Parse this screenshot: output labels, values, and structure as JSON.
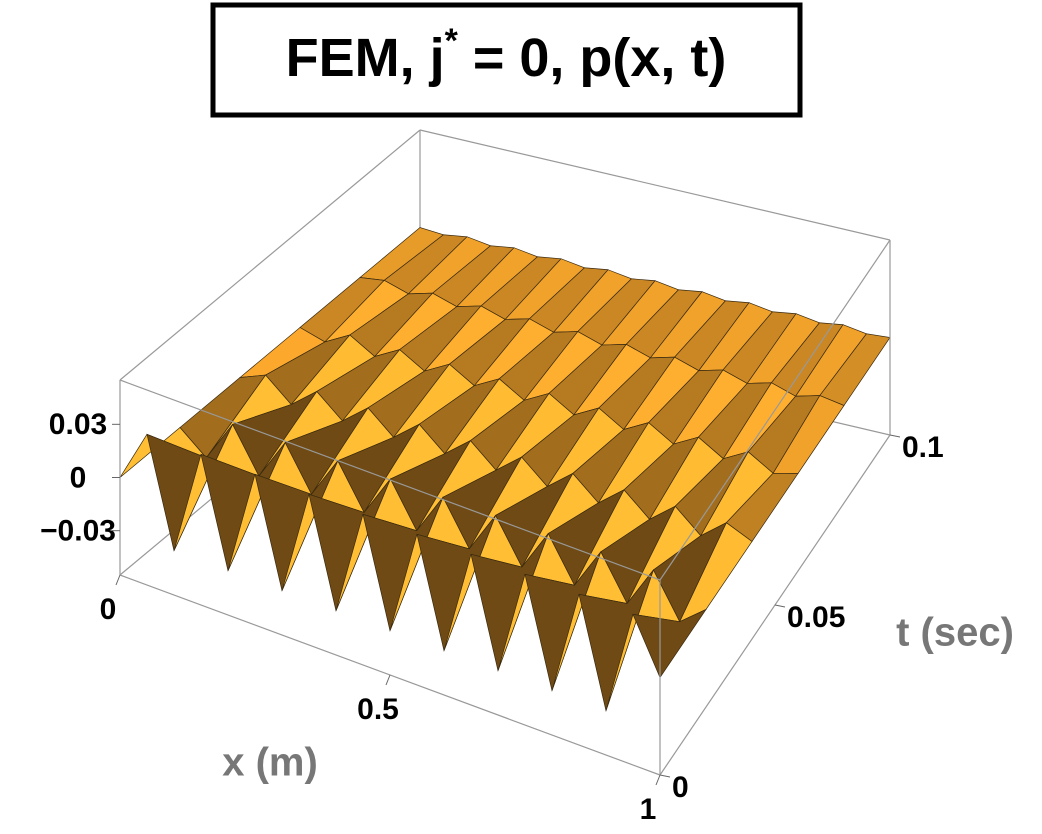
{
  "chart_data": {
    "type": "surface3d",
    "title": "FEM, j* = 0, p(x, t)",
    "x_label": "x (m)",
    "t_label": "t (sec)",
    "color": "#f6a52c",
    "x": [
      0,
      0.05,
      0.1,
      0.15,
      0.2,
      0.25,
      0.3,
      0.35,
      0.4,
      0.45,
      0.5,
      0.55,
      0.6,
      0.65,
      0.7,
      0.75,
      0.8,
      0.85,
      0.9,
      0.95,
      1
    ],
    "t": [
      0,
      0.02,
      0.04,
      0.06,
      0.08,
      0.1
    ],
    "z": [
      [
        0,
        0.03,
        -0.03,
        0.03,
        -0.03,
        0.03,
        -0.03,
        0.03,
        -0.03,
        0.03,
        -0.03,
        0.03,
        -0.03,
        0.03,
        -0.03,
        0.03,
        -0.03,
        0.03,
        -0.03,
        0.03,
        0
      ],
      [
        0,
        -0.012,
        0.012,
        -0.012,
        0.012,
        -0.012,
        0.012,
        -0.012,
        0.012,
        -0.012,
        0.012,
        -0.012,
        0.012,
        -0.012,
        0.012,
        -0.012,
        0.012,
        -0.012,
        0.012,
        -0.012,
        0
      ],
      [
        0,
        0.006,
        -0.006,
        0.006,
        -0.006,
        0.006,
        -0.006,
        0.006,
        -0.006,
        0.006,
        -0.006,
        0.006,
        -0.006,
        0.006,
        -0.006,
        0.006,
        -0.006,
        0.006,
        -0.006,
        0.006,
        0
      ],
      [
        0,
        -0.004,
        0.004,
        -0.004,
        0.004,
        -0.004,
        0.004,
        -0.004,
        0.004,
        -0.004,
        0.004,
        -0.004,
        0.004,
        -0.004,
        0.004,
        -0.004,
        0.004,
        -0.004,
        0.004,
        -0.004,
        0
      ],
      [
        0,
        0.002,
        -0.002,
        0.002,
        -0.002,
        0.002,
        -0.002,
        0.002,
        -0.002,
        0.002,
        -0.002,
        0.002,
        -0.002,
        0.002,
        -0.002,
        0.002,
        -0.002,
        0.002,
        -0.002,
        0.002,
        0
      ],
      [
        0,
        -0.001,
        0.001,
        -0.001,
        0.001,
        -0.001,
        0.001,
        -0.001,
        0.001,
        -0.001,
        0.001,
        -0.001,
        0.001,
        -0.001,
        0.001,
        -0.001,
        0.001,
        -0.001,
        0.001,
        -0.001,
        0
      ]
    ],
    "xlim": [
      0,
      1
    ],
    "xticks": [
      0,
      0.5,
      1
    ],
    "tlim": [
      0,
      0.1
    ],
    "tticks": [
      0,
      0.05,
      0.1
    ],
    "zlim": [
      -0.055,
      0.055
    ],
    "zticks": [
      0.03,
      0,
      {
        "value": -0.03,
        "label": "−0.03"
      }
    ]
  }
}
